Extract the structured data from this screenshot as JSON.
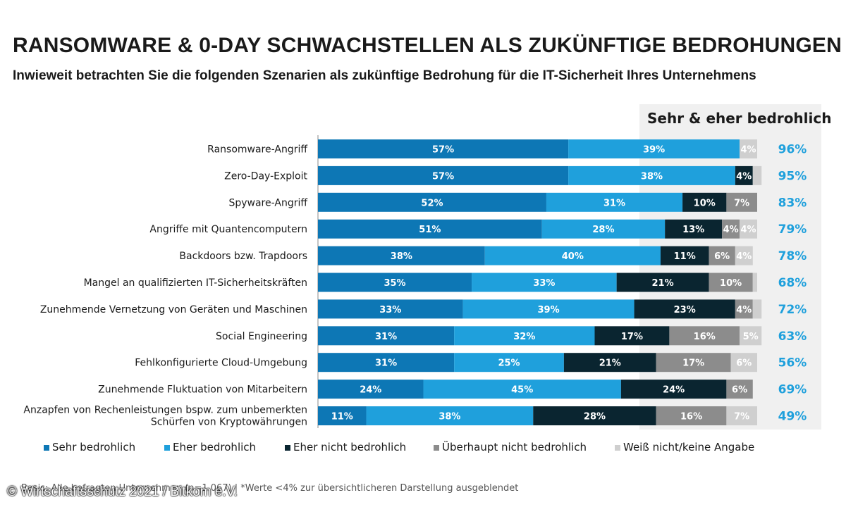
{
  "header": {
    "title": "RANSOMWARE & 0-DAY SCHWACHSTELLEN ALS ZUKÜNFTIGE BEDROHUNGEN",
    "subtitle": "Inwieweit betrachten Sie die folgenden Szenarien als zukünftige Bedrohung für die IT-Sicherheit Ihres Unternehmens"
  },
  "summary": {
    "header": "Sehr & eher bedrohlich"
  },
  "footer": {
    "footnote": "Basis: Alle befragten Unternehmen (n=1.067) | *Werte <4% zur übersichtlicheren Darstellung ausgeblendet",
    "copyright": "© Wirtschaftsschutz 2021 / Bitkom e.V."
  },
  "colors": {
    "sehr": "#0d77b5",
    "eher": "#1fa0dc",
    "eher_nicht": "#0a2530",
    "ueberhaupt_nicht": "#8c8c8c",
    "weiss_nicht": "#cfcfcf",
    "summary_text": "#1fa0dc"
  },
  "chart_data": {
    "type": "bar",
    "orientation": "horizontal",
    "stacked": true,
    "title": "RANSOMWARE & 0-DAY SCHWACHSTELLEN ALS ZUKÜNFTIGE BEDROHUNGEN",
    "xlim": [
      0,
      100
    ],
    "unit": "%",
    "categories": [
      [
        "Ransomware-Angriff"
      ],
      [
        "Zero-Day-Exploit"
      ],
      [
        "Spyware-Angriff"
      ],
      [
        "Angriffe mit Quantencomputern"
      ],
      [
        "Backdoors bzw. Trapdoors"
      ],
      [
        "Mangel an qualifizierten IT-Sicherheitskräften"
      ],
      [
        "Zunehmende Vernetzung von Geräten und Maschinen"
      ],
      [
        "Social Engineering"
      ],
      [
        "Fehlkonfigurierte Cloud-Umgebung"
      ],
      [
        "Zunehmende Fluktuation von Mitarbeitern"
      ],
      [
        "Anzapfen von Rechenleistungen bspw. zum unbemerkten",
        "Schürfen von Kryptowährungen"
      ]
    ],
    "series": [
      {
        "name": "Sehr bedrohlich",
        "color_key": "sehr",
        "label_color": "#ffffff",
        "values": [
          57,
          57,
          52,
          51,
          38,
          35,
          33,
          31,
          31,
          24,
          11
        ],
        "labels": [
          "57%",
          "57%",
          "52%",
          "51%",
          "38%",
          "35%",
          "33%",
          "31%",
          "31%",
          "24%",
          "11%"
        ]
      },
      {
        "name": "Eher bedrohlich",
        "color_key": "eher",
        "label_color": "#ffffff",
        "values": [
          39,
          38,
          31,
          28,
          40,
          33,
          39,
          32,
          25,
          45,
          38
        ],
        "labels": [
          "39%",
          "38%",
          "31%",
          "28%",
          "40%",
          "33%",
          "39%",
          "32%",
          "25%",
          "45%",
          "38%"
        ]
      },
      {
        "name": "Eher nicht bedrohlich",
        "color_key": "eher_nicht",
        "label_color": "#ffffff",
        "values": [
          0,
          4,
          10,
          13,
          11,
          21,
          23,
          17,
          21,
          24,
          28
        ],
        "labels": [
          "",
          "4%",
          "10%",
          "13%",
          "11%",
          "21%",
          "23%",
          "17%",
          "21%",
          "24%",
          "28%"
        ]
      },
      {
        "name": "Überhaupt nicht bedrohlich",
        "color_key": "ueberhaupt_nicht",
        "label_color": "#ffffff",
        "values": [
          0,
          0,
          7,
          4,
          6,
          10,
          4,
          16,
          17,
          6,
          16
        ],
        "labels": [
          "",
          "",
          "7%",
          "4%",
          "6%",
          "10%",
          "4%",
          "16%",
          "17%",
          "6%",
          "16%"
        ]
      },
      {
        "name": "Weiß nicht/keine Angabe",
        "color_key": "weiss_nicht",
        "label_color": "#ffffff",
        "values": [
          4,
          2,
          0,
          4,
          4,
          1,
          2,
          5,
          6,
          0,
          7
        ],
        "labels": [
          "4%",
          "",
          "",
          "4%",
          "4%",
          "",
          "",
          "5%",
          "6%",
          "",
          "7%"
        ]
      }
    ],
    "summary_values": [
      "96%",
      "95%",
      "83%",
      "79%",
      "78%",
      "68%",
      "72%",
      "63%",
      "56%",
      "69%",
      "49%"
    ]
  }
}
